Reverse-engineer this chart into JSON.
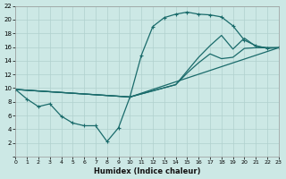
{
  "xlabel": "Humidex (Indice chaleur)",
  "bg_color": "#cce8e5",
  "grid_color": "#b0d0cd",
  "line_color": "#1a6b6b",
  "xlim": [
    0,
    23
  ],
  "ylim": [
    0,
    22
  ],
  "xticks": [
    0,
    1,
    2,
    3,
    4,
    5,
    6,
    7,
    8,
    9,
    10,
    11,
    12,
    13,
    14,
    15,
    16,
    17,
    18,
    19,
    20,
    21,
    22,
    23
  ],
  "yticks": [
    0,
    2,
    4,
    6,
    8,
    10,
    12,
    14,
    16,
    18,
    20,
    22
  ],
  "line1_x": [
    0,
    1,
    2,
    3,
    4,
    5,
    6,
    7,
    8,
    9,
    10,
    11,
    12,
    13,
    14,
    15,
    16,
    17,
    18,
    19,
    20,
    21,
    22,
    23
  ],
  "line1_y": [
    9.8,
    8.4,
    7.3,
    7.7,
    5.9,
    4.9,
    4.5,
    4.5,
    2.2,
    4.2,
    8.7,
    14.8,
    19.0,
    20.3,
    20.8,
    21.1,
    20.8,
    20.7,
    20.4,
    19.1,
    17.0,
    16.2,
    15.8,
    15.9
  ],
  "line2_x": [
    0,
    10,
    14,
    15,
    16,
    17,
    18,
    19,
    20,
    21,
    22,
    23
  ],
  "line2_y": [
    9.8,
    8.7,
    10.5,
    12.5,
    14.5,
    16.2,
    17.7,
    15.7,
    17.3,
    16.1,
    15.9,
    15.9
  ],
  "line3_x": [
    0,
    10,
    14,
    15,
    16,
    17,
    18,
    19,
    20,
    21,
    22,
    23
  ],
  "line3_y": [
    9.8,
    8.7,
    10.5,
    12.2,
    13.7,
    15.0,
    14.3,
    14.5,
    15.8,
    15.9,
    15.9,
    15.9
  ],
  "line4_x": [
    0,
    10,
    23
  ],
  "line4_y": [
    9.8,
    8.7,
    15.9
  ]
}
